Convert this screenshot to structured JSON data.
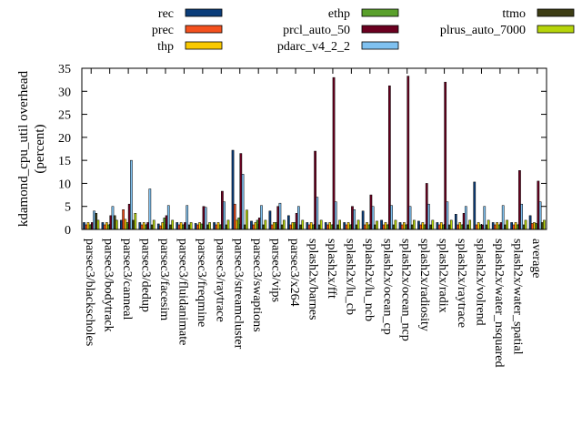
{
  "chart_data": {
    "type": "bar",
    "title": "",
    "xlabel": "",
    "ylabel": "kdamond_cpu_util overhead\n(percent)",
    "ylim": [
      0,
      35
    ],
    "yticks": [
      0,
      5,
      10,
      15,
      20,
      25,
      30,
      35
    ],
    "grid": false,
    "legend_position": "top",
    "categories": [
      "parsec3/blackscholes",
      "parsec3/bodytrack",
      "parsec3/canneal",
      "parsec3/dedup",
      "parsec3/facesim",
      "parsec3/fluidanimate",
      "parsec3/freqmine",
      "parsec3/raytrace",
      "parsec3/streamcluster",
      "parsec3/swaptions",
      "parsec3/vips",
      "parsec3/x264",
      "splash2x/barnes",
      "splash2x/fft",
      "splash2x/lu_cb",
      "splash2x/lu_ncb",
      "splash2x/ocean_cp",
      "splash2x/ocean_ncp",
      "splash2x/radiosity",
      "splash2x/radix",
      "splash2x/raytrace",
      "splash2x/volrend",
      "splash2x/water_nsquared",
      "splash2x/water_spatial",
      "average"
    ],
    "series": [
      {
        "name": "rec",
        "color": "#0b3d7a",
        "values": [
          1.5,
          1.5,
          2.0,
          1.5,
          1.2,
          1.5,
          1.3,
          1.5,
          17.2,
          1.8,
          4.0,
          3.0,
          1.5,
          1.5,
          1.5,
          4.0,
          2.0,
          1.5,
          1.8,
          1.5,
          3.3,
          10.3,
          1.5,
          1.5,
          3.0
        ]
      },
      {
        "name": "prec",
        "color": "#f4511e",
        "values": [
          1.0,
          1.0,
          4.3,
          1.0,
          0.8,
          1.0,
          1.0,
          1.0,
          5.5,
          1.0,
          1.0,
          1.0,
          1.0,
          1.0,
          1.0,
          1.0,
          1.0,
          1.0,
          1.0,
          1.0,
          1.0,
          1.0,
          1.0,
          1.0,
          1.3
        ]
      },
      {
        "name": "thp",
        "color": "#f9c900",
        "values": [
          1.5,
          1.5,
          2.2,
          1.5,
          1.5,
          1.5,
          1.5,
          1.5,
          2.0,
          1.5,
          1.5,
          1.5,
          1.5,
          1.5,
          1.5,
          1.5,
          1.5,
          1.5,
          1.5,
          1.5,
          1.5,
          1.5,
          1.5,
          1.5,
          1.5
        ]
      },
      {
        "name": "ethp",
        "color": "#5aa02c",
        "values": [
          1.0,
          1.0,
          1.5,
          1.0,
          2.5,
          1.0,
          1.2,
          1.0,
          2.5,
          2.0,
          1.5,
          1.5,
          1.0,
          1.0,
          1.0,
          1.0,
          1.0,
          1.0,
          1.0,
          1.0,
          1.0,
          1.0,
          1.0,
          1.0,
          1.3
        ]
      },
      {
        "name": "prcl_auto_50",
        "color": "#6b0020",
        "values": [
          1.5,
          3.0,
          5.5,
          1.5,
          3.0,
          1.5,
          5.0,
          8.3,
          16.5,
          2.5,
          5.0,
          3.5,
          17.0,
          33.0,
          5.0,
          7.5,
          31.2,
          33.3,
          10.0,
          32.0,
          3.5,
          1.0,
          1.5,
          12.8,
          10.5
        ]
      },
      {
        "name": "pdarc_v4_2_2",
        "color": "#7fc1f0",
        "values": [
          4.0,
          5.0,
          15.0,
          8.8,
          5.2,
          5.2,
          4.8,
          6.0,
          12.0,
          5.2,
          5.7,
          5.0,
          7.0,
          6.0,
          4.3,
          5.0,
          5.2,
          5.0,
          5.5,
          6.0,
          5.0,
          5.0,
          5.2,
          5.5,
          6.0
        ]
      },
      {
        "name": "ttmo",
        "color": "#3d3d14",
        "values": [
          3.5,
          3.0,
          2.0,
          1.0,
          1.0,
          1.0,
          1.0,
          1.0,
          1.0,
          1.0,
          1.0,
          1.0,
          1.0,
          1.0,
          1.0,
          1.0,
          1.0,
          1.0,
          1.0,
          1.0,
          1.0,
          1.0,
          1.0,
          1.0,
          1.5
        ]
      },
      {
        "name": "plrus_auto_7000",
        "color": "#b6d40a",
        "values": [
          2.0,
          2.0,
          3.5,
          2.0,
          2.0,
          1.5,
          1.5,
          2.0,
          4.2,
          2.0,
          2.0,
          2.0,
          2.0,
          2.0,
          2.0,
          1.8,
          2.0,
          2.0,
          2.0,
          2.0,
          2.0,
          2.0,
          2.0,
          2.0,
          2.0
        ]
      }
    ]
  }
}
